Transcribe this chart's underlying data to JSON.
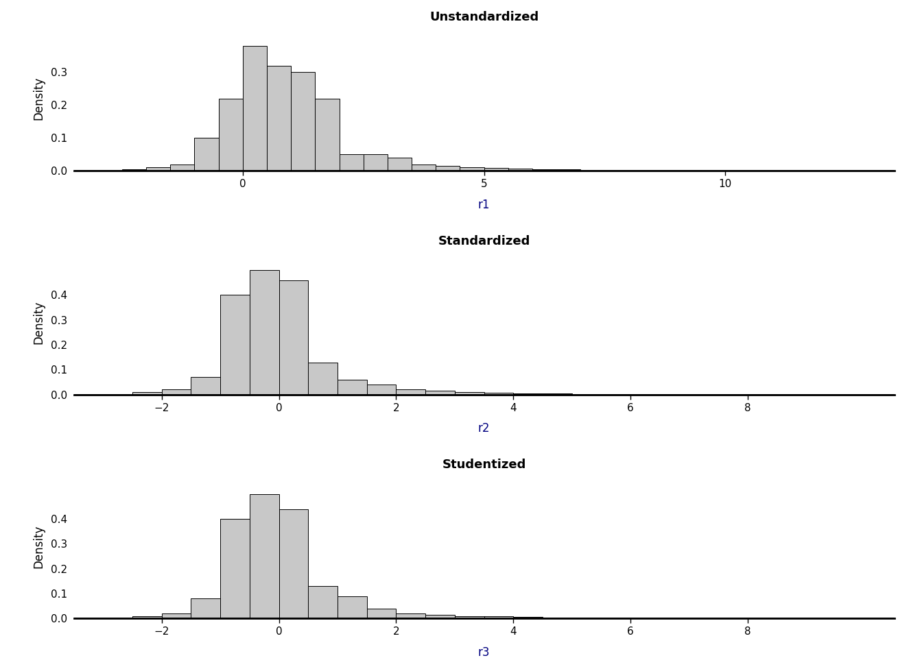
{
  "titles": [
    "Unstandardized",
    "Standardized",
    "Studentized"
  ],
  "xlabels": [
    "r1",
    "r2",
    "r3"
  ],
  "ylabel": "Density",
  "title_fontsize": 13,
  "label_fontsize": 12,
  "tick_fontsize": 11,
  "bar_color": "#c8c8c8",
  "bar_edgecolor": "#000000",
  "xlabel_color": "#000080",
  "background_color": "#ffffff",
  "plots": [
    {
      "xlim": [
        -3.5,
        13.5
      ],
      "ylim": [
        0,
        0.44
      ],
      "xticks": [
        0,
        5,
        10
      ],
      "yticks": [
        0.0,
        0.1,
        0.2,
        0.3
      ],
      "bin_edges": [
        -2.5,
        -2.0,
        -1.5,
        -1.0,
        -0.5,
        0.0,
        0.5,
        1.0,
        1.5,
        2.0,
        2.5,
        3.0,
        3.5,
        4.0,
        4.5,
        5.0,
        5.5,
        6.0,
        6.5,
        7.0,
        7.5,
        8.0,
        8.5,
        9.0,
        9.5,
        10.0,
        10.5,
        11.0,
        11.5,
        12.0
      ],
      "bar_heights": [
        0.005,
        0.01,
        0.02,
        0.1,
        0.22,
        0.38,
        0.32,
        0.3,
        0.22,
        0.05,
        0.05,
        0.04,
        0.02,
        0.015,
        0.01,
        0.008,
        0.006,
        0.005,
        0.004,
        0.003,
        0.003,
        0.002,
        0.002,
        0.002,
        0.001,
        0.001,
        0.001,
        0.001,
        0.001
      ]
    },
    {
      "xlim": [
        -3.5,
        10.5
      ],
      "ylim": [
        0,
        0.58
      ],
      "xticks": [
        -2,
        0,
        2,
        4,
        6,
        8
      ],
      "yticks": [
        0.0,
        0.1,
        0.2,
        0.3,
        0.4
      ],
      "bin_edges": [
        -2.5,
        -2.0,
        -1.5,
        -1.0,
        -0.5,
        0.0,
        0.5,
        1.0,
        1.5,
        2.0,
        2.5,
        3.0,
        3.5,
        4.0,
        4.5,
        5.0,
        5.5,
        6.0,
        6.5,
        7.0,
        7.5,
        8.0,
        8.5,
        9.0,
        9.5
      ],
      "bar_heights": [
        0.01,
        0.02,
        0.07,
        0.4,
        0.5,
        0.46,
        0.13,
        0.06,
        0.04,
        0.02,
        0.015,
        0.01,
        0.008,
        0.006,
        0.004,
        0.003,
        0.002,
        0.002,
        0.001,
        0.001,
        0.001,
        0.001,
        0.0005,
        0.0005
      ]
    },
    {
      "xlim": [
        -3.5,
        10.5
      ],
      "ylim": [
        0,
        0.58
      ],
      "xticks": [
        -2,
        0,
        2,
        4,
        6,
        8
      ],
      "yticks": [
        0.0,
        0.1,
        0.2,
        0.3,
        0.4
      ],
      "bin_edges": [
        -2.5,
        -2.0,
        -1.5,
        -1.0,
        -0.5,
        0.0,
        0.5,
        1.0,
        1.5,
        2.0,
        2.5,
        3.0,
        3.5,
        4.0,
        4.5,
        5.0,
        5.5,
        6.0,
        6.5,
        7.0,
        7.5,
        8.0,
        8.5,
        9.0,
        9.5
      ],
      "bar_heights": [
        0.01,
        0.02,
        0.08,
        0.4,
        0.5,
        0.44,
        0.13,
        0.09,
        0.04,
        0.02,
        0.015,
        0.01,
        0.008,
        0.006,
        0.004,
        0.003,
        0.002,
        0.002,
        0.001,
        0.001,
        0.001,
        0.001,
        0.0005,
        0.0005
      ]
    }
  ]
}
